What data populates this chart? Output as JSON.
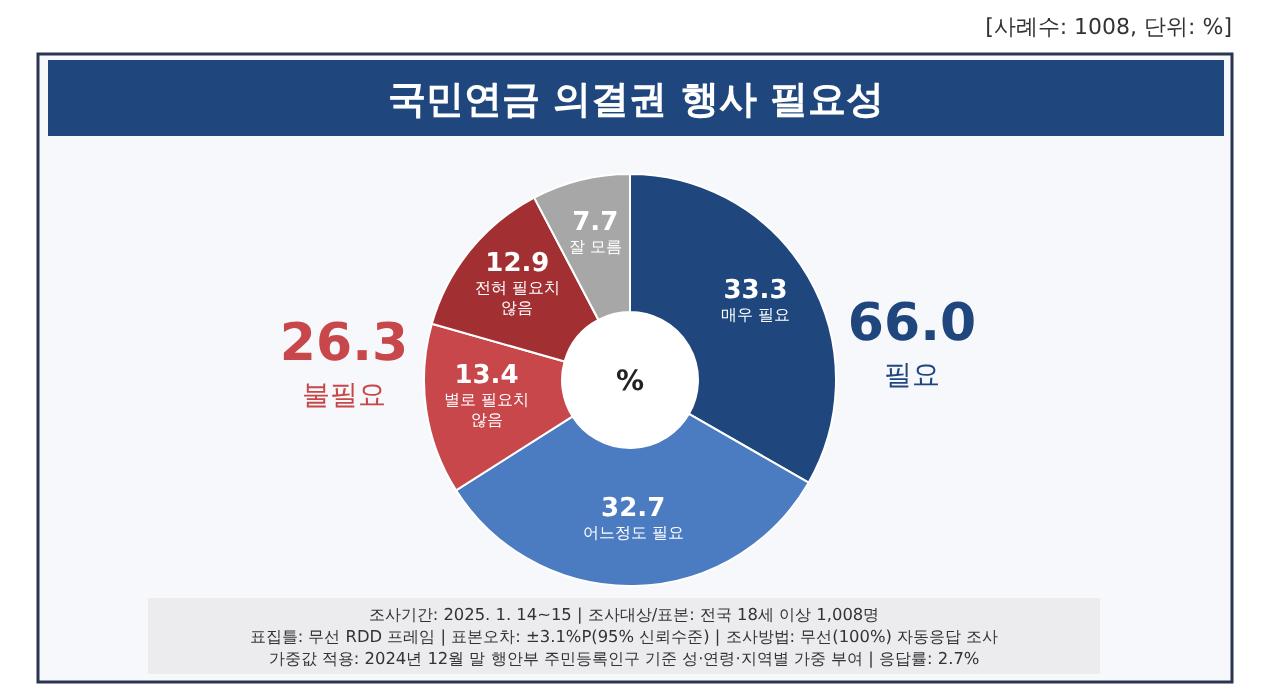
{
  "chart_data": {
    "type": "donut",
    "title": "국민연금 의결권 행사 필요성",
    "subtitle": "[사례수: 1008, 단위: %]",
    "categories": [
      "매우 필요",
      "어느정도 필요",
      "별로 필요치 않음",
      "전혀 필요치 않음",
      "잘 모름"
    ],
    "values": [
      33.3,
      32.7,
      13.4,
      12.9,
      7.7
    ],
    "colors": [
      "#1f477e",
      "#4b7bc0",
      "#c8474b",
      "#a23033",
      "#a7a7a7"
    ],
    "data_labels": true,
    "annotations": [
      "%",
      "66.0",
      "필요",
      "26.3",
      "불필요",
      "조사기간: 2025. 1. 14~15 | 조사대상/표본: 전국 18세 이상 1,008명",
      "표집틀: 무선 RDD 프레임 | 표본오차: ±3.1%P(95% 신뢰수준) | 조사방법: 무선(100%) 자동응답 조사",
      "가중값 적용: 2024년 12월 말 행안부 주민등록인구 기준 성·연령·지역별 가중 부여 | 응답률: 2.7%"
    ]
  }
}
